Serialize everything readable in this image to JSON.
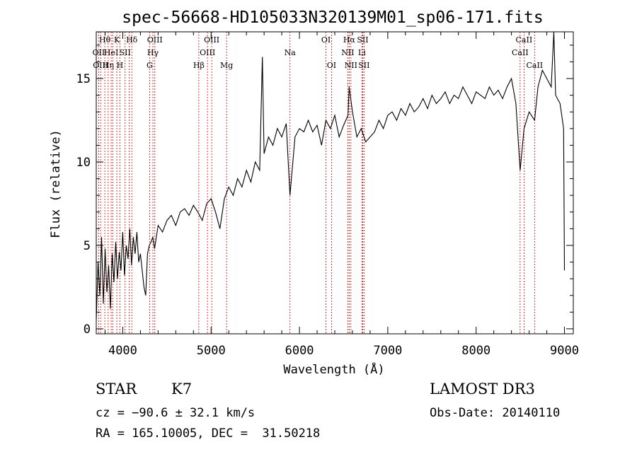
{
  "chart_data": {
    "type": "line",
    "title": "spec-56668-HD105033N320139M01_sp06-171.fits",
    "xlabel": "Wavelength (Å)",
    "ylabel": "Flux (relative)",
    "xlim": [
      3700,
      9100
    ],
    "ylim": [
      -0.3,
      17.8
    ],
    "x_ticks": [
      4000,
      5000,
      6000,
      7000,
      8000,
      9000
    ],
    "y_ticks": [
      0,
      5,
      10,
      15
    ],
    "grid": false,
    "line_color": "#000000",
    "marker_color": "#cc0000",
    "series": [
      {
        "x": [
          3700,
          3720,
          3740,
          3760,
          3780,
          3800,
          3820,
          3840,
          3860,
          3880,
          3900,
          3920,
          3940,
          3960,
          3980,
          4000,
          4020,
          4040,
          4060,
          4080,
          4100,
          4120,
          4140,
          4160,
          4180,
          4200,
          4220,
          4240,
          4260,
          4280,
          4300,
          4320,
          4340,
          4360,
          4380,
          4400,
          4450,
          4500,
          4550,
          4600,
          4650,
          4700,
          4750,
          4800,
          4850,
          4900,
          4950,
          5000,
          5050,
          5100,
          5150,
          5200,
          5250,
          5300,
          5350,
          5400,
          5450,
          5500,
          5550,
          5580,
          5600,
          5650,
          5700,
          5750,
          5800,
          5850,
          5893,
          5950,
          6000,
          6050,
          6100,
          6150,
          6200,
          6250,
          6300,
          6350,
          6400,
          6450,
          6500,
          6550,
          6563,
          6600,
          6650,
          6700,
          6750,
          6800,
          6850,
          6900,
          6950,
          7000,
          7050,
          7100,
          7150,
          7200,
          7250,
          7300,
          7350,
          7400,
          7450,
          7500,
          7550,
          7600,
          7650,
          7700,
          7750,
          7800,
          7850,
          7900,
          7950,
          8000,
          8050,
          8100,
          8150,
          8200,
          8250,
          8300,
          8350,
          8400,
          8450,
          8498,
          8542,
          8600,
          8662,
          8700,
          8750,
          8800,
          8850,
          8880,
          8900,
          8950,
          8990,
          9000
        ],
        "y": [
          0.5,
          4.0,
          2.0,
          5.5,
          1.5,
          4.8,
          2.2,
          3.8,
          1.2,
          4.5,
          2.8,
          5.2,
          3.0,
          4.6,
          3.5,
          5.8,
          3.2,
          5.0,
          4.2,
          6.0,
          3.8,
          5.5,
          4.5,
          5.8,
          4.0,
          4.5,
          3.5,
          2.5,
          2.0,
          4.5,
          5.0,
          5.2,
          5.5,
          4.8,
          5.5,
          6.2,
          5.8,
          6.5,
          6.8,
          6.2,
          7.0,
          7.2,
          6.8,
          7.4,
          7.0,
          6.5,
          7.5,
          7.8,
          7.0,
          6.0,
          7.8,
          8.5,
          8.0,
          9.0,
          8.5,
          9.5,
          8.8,
          10.0,
          9.5,
          16.3,
          10.5,
          11.5,
          11.0,
          12.0,
          11.5,
          12.3,
          8.0,
          11.5,
          12.0,
          11.8,
          12.5,
          11.8,
          12.2,
          11.0,
          12.5,
          12.0,
          12.8,
          11.5,
          12.2,
          12.8,
          14.5,
          13.0,
          11.5,
          12.0,
          11.2,
          11.5,
          11.8,
          12.5,
          12.0,
          12.8,
          13.0,
          12.5,
          13.2,
          12.8,
          13.5,
          13.0,
          13.3,
          13.8,
          13.2,
          14.0,
          13.5,
          13.8,
          14.2,
          13.5,
          14.0,
          13.8,
          14.5,
          14.0,
          13.5,
          14.2,
          14.0,
          13.8,
          14.5,
          14.0,
          14.3,
          13.8,
          14.5,
          15.0,
          13.5,
          9.5,
          12.0,
          13.0,
          12.5,
          14.5,
          15.5,
          15.0,
          14.5,
          18.5,
          14.0,
          13.5,
          12.0,
          3.5
        ]
      }
    ],
    "lines": [
      {
        "x": 3727,
        "label": "OII",
        "row": 1
      },
      {
        "x": 3750,
        "label": "OIII",
        "row": 2
      },
      {
        "x": 3797,
        "label": "Hθ",
        "row": 0
      },
      {
        "x": 3835,
        "label": "Hη",
        "row": 2
      },
      {
        "x": 3869,
        "label": "HeI",
        "row": 1
      },
      {
        "x": 3889,
        "label": "",
        "row": 0
      },
      {
        "x": 3933,
        "label": "K",
        "row": 0
      },
      {
        "x": 3968,
        "label": "H",
        "row": 2
      },
      {
        "x": 4026,
        "label": "SII",
        "row": 1
      },
      {
        "x": 4072,
        "label": "",
        "row": 1
      },
      {
        "x": 4102,
        "label": "Hδ",
        "row": 0
      },
      {
        "x": 4304,
        "label": "G",
        "row": 2
      },
      {
        "x": 4341,
        "label": "Hγ",
        "row": 1
      },
      {
        "x": 4363,
        "label": "OIII",
        "row": 0
      },
      {
        "x": 4861,
        "label": "Hβ",
        "row": 2
      },
      {
        "x": 4959,
        "label": "OIII",
        "row": 1
      },
      {
        "x": 5007,
        "label": "OIII",
        "row": 0
      },
      {
        "x": 5175,
        "label": "Mg",
        "row": 2
      },
      {
        "x": 5893,
        "label": "Na",
        "row": 1
      },
      {
        "x": 6300,
        "label": "OI",
        "row": 0
      },
      {
        "x": 6363,
        "label": "OI",
        "row": 2
      },
      {
        "x": 6548,
        "label": "NII",
        "row": 1
      },
      {
        "x": 6563,
        "label": "Hα",
        "row": 0
      },
      {
        "x": 6583,
        "label": "NII",
        "row": 2
      },
      {
        "x": 6707,
        "label": "Li",
        "row": 1
      },
      {
        "x": 6716,
        "label": "SII",
        "row": 0
      },
      {
        "x": 6731,
        "label": "SII",
        "row": 2
      },
      {
        "x": 8498,
        "label": "CaII",
        "row": 1
      },
      {
        "x": 8542,
        "label": "CaII",
        "row": 0
      },
      {
        "x": 8662,
        "label": "CaII",
        "row": 2
      }
    ]
  },
  "info": {
    "object_class": "STAR",
    "subclass": "K7",
    "survey": "LAMOST DR3",
    "cz": "cz = −90.6 ± 32.1 km/s",
    "obs_date": "Obs-Date: 20140110",
    "coords": "RA = 165.10005, DEC =  31.50218"
  }
}
